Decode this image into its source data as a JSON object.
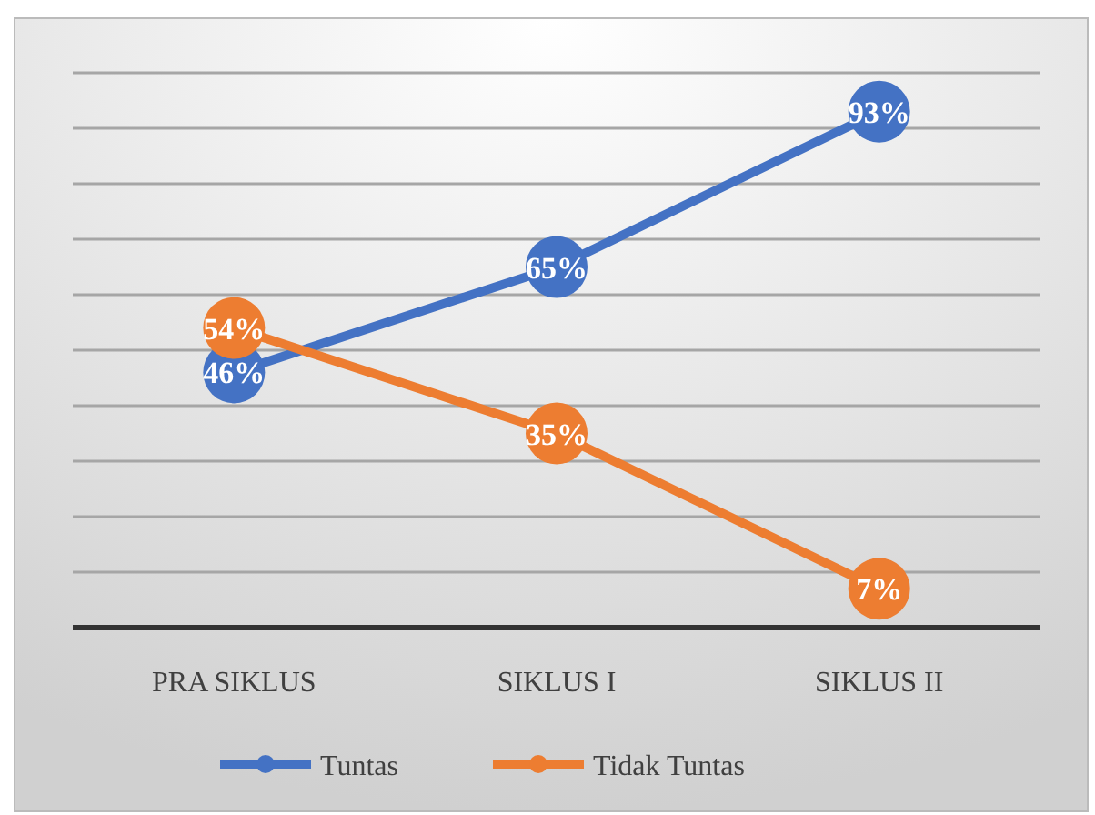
{
  "chart_data": {
    "type": "line",
    "categories": [
      "PRA SIKLUS",
      "SIKLUS I",
      "SIKLUS II"
    ],
    "series": [
      {
        "name": "Tuntas",
        "color": "#4472c4",
        "values": [
          46,
          65,
          93
        ],
        "value_labels": [
          "46%",
          "65%",
          "93%"
        ]
      },
      {
        "name": "Tidak Tuntas",
        "color": "#ed7d31",
        "values": [
          54,
          35,
          7
        ],
        "value_labels": [
          "54%",
          "35%",
          "7%"
        ]
      }
    ],
    "ylim": [
      0,
      100
    ],
    "yticks": [
      {
        "value": 0,
        "label": null
      },
      {
        "value": 10,
        "label": null
      },
      {
        "value": 20,
        "label": null
      },
      {
        "value": 30,
        "label": null
      },
      {
        "value": 40,
        "label": null
      },
      {
        "value": 50,
        "label": null
      },
      {
        "value": 60,
        "label": null
      },
      {
        "value": 70,
        "label": null
      },
      {
        "value": 80,
        "label": null
      },
      {
        "value": 90,
        "label": null
      },
      {
        "value": 100,
        "label": null
      }
    ],
    "tick_labels": "x",
    "grid": "y",
    "legend": "bottom",
    "marker": "circle",
    "line_style": "solid"
  }
}
